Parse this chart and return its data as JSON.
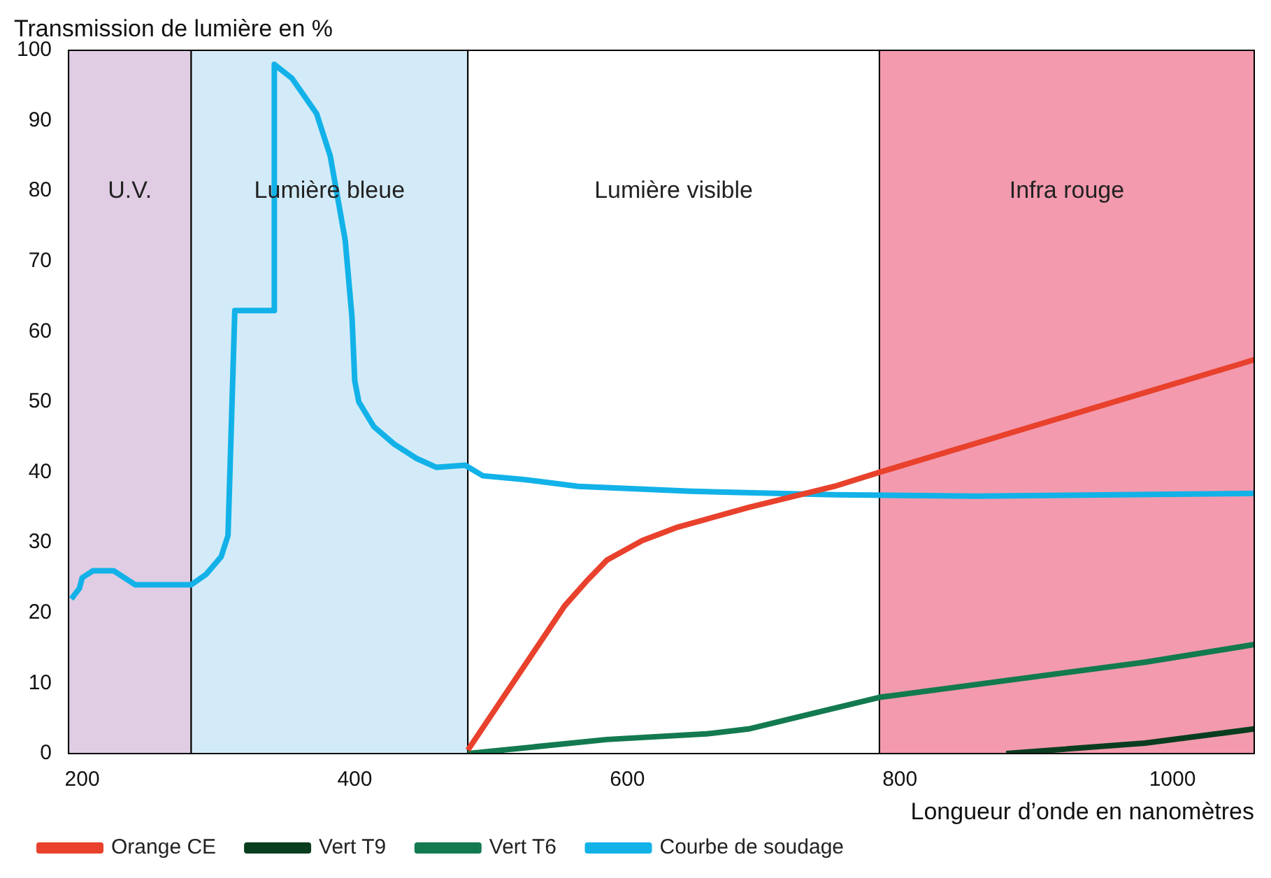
{
  "chart_data": {
    "type": "line",
    "ylabel": "Transmission de lumière en %",
    "xlabel": "Longueur d’onde en nanomètres",
    "xlim": [
      190,
      1060
    ],
    "xticks": [
      200,
      400,
      600,
      800,
      1000
    ],
    "ylim": [
      0,
      100
    ],
    "yticks": [
      0,
      10,
      20,
      30,
      40,
      50,
      60,
      70,
      80,
      90,
      100
    ],
    "grid": false,
    "legend": "bottom left",
    "marker": "none",
    "line_style": "solid",
    "bands": [
      {
        "axis": "x",
        "from": 190,
        "to": 280,
        "label": "U.V.",
        "color": "#e0cde3"
      },
      {
        "axis": "x",
        "from": 280,
        "to": 483,
        "label": "Lumière bleue",
        "color": "#d3ebf8"
      },
      {
        "axis": "x",
        "from": 483,
        "to": 785,
        "label": "Lumière visible",
        "color": "#ffffff"
      },
      {
        "axis": "x",
        "from": 785,
        "to": 1060,
        "label": "Infra rouge",
        "color": "#f39aae"
      }
    ],
    "series": [
      {
        "name": "Orange CE",
        "color": "#e8412c",
        "x": [
          483,
          554,
          570,
          585,
          611,
          637,
          689,
          752,
          785,
          1060
        ],
        "values": [
          0.5,
          21,
          24.5,
          27.5,
          30.3,
          32.2,
          35,
          38,
          40,
          56
        ]
      },
      {
        "name": "Vert T9",
        "color": "#0a3d1f",
        "x": [
          878,
          980,
          1060
        ],
        "values": [
          0,
          1.5,
          3.5
        ]
      },
      {
        "name": "Vert T6",
        "color": "#137a4f",
        "x": [
          483,
          585,
          658,
          689,
          785,
          980,
          1060
        ],
        "values": [
          0,
          2,
          2.8,
          3.5,
          8,
          13,
          15.5
        ]
      },
      {
        "name": "Courbe de soudage",
        "color": "#12b2e8",
        "x": [
          192,
          198,
          200,
          208,
          223,
          239,
          280,
          291,
          302,
          307,
          312,
          341,
          341,
          354,
          372,
          382,
          393,
          398,
          400,
          403,
          414,
          429,
          445,
          460,
          481,
          494,
          523,
          564,
          647,
          752,
          856,
          1060
        ],
        "values": [
          22,
          23.5,
          25,
          26,
          26,
          24,
          24,
          25.5,
          28,
          31,
          63,
          63,
          98,
          96,
          91,
          85,
          73,
          62,
          53,
          50,
          46.5,
          44,
          42,
          40.7,
          41,
          39.5,
          39,
          38,
          37.3,
          36.8,
          36.6,
          37
        ]
      }
    ]
  }
}
